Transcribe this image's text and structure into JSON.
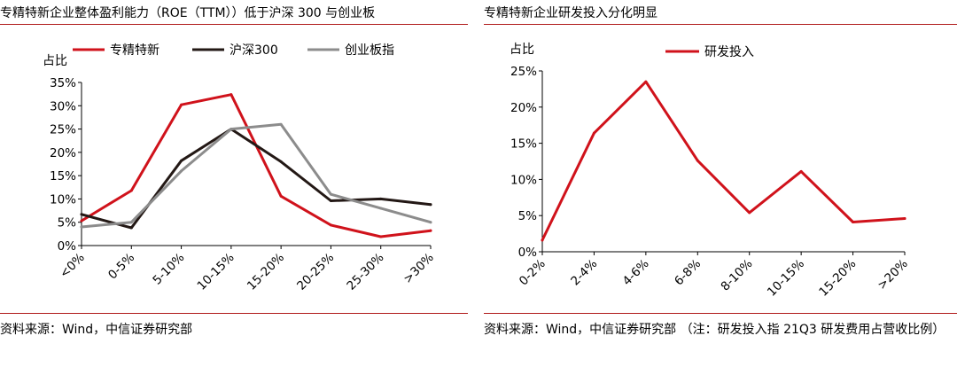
{
  "panels": [
    {
      "title": "专精特新企业整体盈利能力（ROE（TTM））低于沪深 300 与创业板",
      "source": "资料来源：Wind，中信证券研究部"
    },
    {
      "title": "专精特新企业研发投入分化明显",
      "source": "资料来源：Wind，中信证券研究部 （注：研发投入指 21Q3 研发费用占营收比例）"
    }
  ],
  "chart_data": [
    {
      "type": "line",
      "title": "专精特新企业整体盈利能力（ROE（TTM））低于沪深 300 与创业板",
      "ylabel": "占比",
      "xlabel": "",
      "categories": [
        "<0%",
        "0-5%",
        "5-10%",
        "10-15%",
        "15-20%",
        "20-25%",
        "25-30%",
        ">30%"
      ],
      "ylim": [
        0,
        35
      ],
      "yticks": [
        "0%",
        "5%",
        "10%",
        "15%",
        "20%",
        "25%",
        "30%",
        "35%"
      ],
      "grid": false,
      "legend_position": "top",
      "series": [
        {
          "name": "专精特新",
          "color": "#d0121b",
          "values": [
            5.3,
            11.8,
            30.2,
            32.4,
            10.6,
            4.4,
            1.9,
            3.2
          ]
        },
        {
          "name": "沪深300",
          "color": "#231815",
          "values": [
            6.7,
            3.8,
            18.2,
            25.0,
            18.0,
            9.6,
            10.0,
            8.8
          ]
        },
        {
          "name": "创业板指",
          "color": "#8c8c8c",
          "values": [
            4.0,
            5.0,
            16.0,
            25.0,
            26.0,
            11.0,
            8.0,
            5.0
          ]
        }
      ]
    },
    {
      "type": "line",
      "title": "专精特新企业研发投入分化明显",
      "ylabel": "占比",
      "xlabel": "",
      "categories": [
        "0-2%",
        "2-4%",
        "4-6%",
        "6-8%",
        "8-10%",
        "10-15%",
        "15-20%",
        ">20%"
      ],
      "ylim": [
        0,
        25
      ],
      "yticks": [
        "0%",
        "5%",
        "10%",
        "15%",
        "20%",
        "25%"
      ],
      "grid": false,
      "legend_position": "top",
      "series": [
        {
          "name": "研发投入",
          "color": "#d0121b",
          "values": [
            1.6,
            16.4,
            23.5,
            12.6,
            5.4,
            11.1,
            4.1,
            4.6
          ]
        }
      ]
    }
  ]
}
